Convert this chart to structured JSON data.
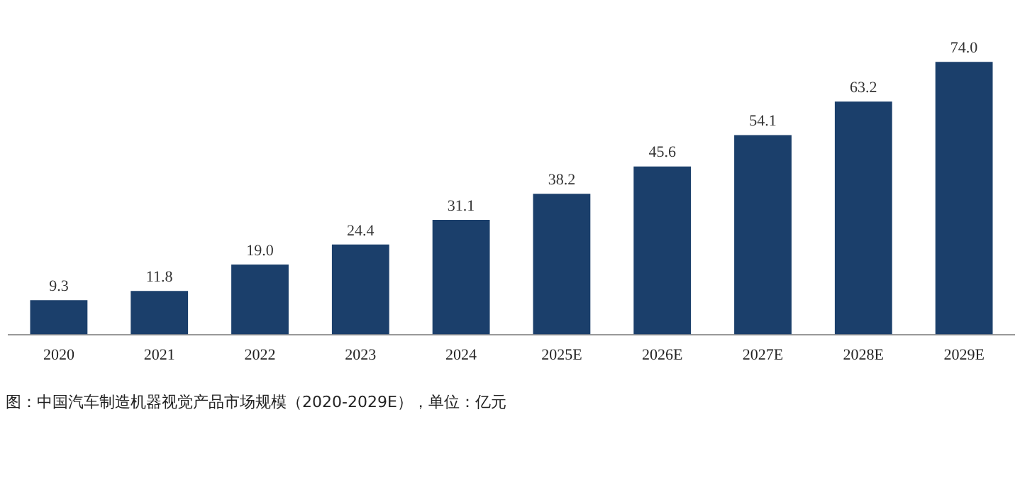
{
  "chart_data": {
    "type": "bar",
    "categories": [
      "2020",
      "2021",
      "2022",
      "2023",
      "2024",
      "2025E",
      "2026E",
      "2027E",
      "2028E",
      "2029E"
    ],
    "values": [
      9.3,
      11.8,
      19.0,
      24.4,
      31.1,
      38.2,
      45.6,
      54.1,
      63.2,
      74.0
    ],
    "color": "#1b3f6b",
    "value_labels": [
      "9.3",
      "11.8",
      "19.0",
      "24.4",
      "31.1",
      "38.2",
      "45.6",
      "54.1",
      "63.2",
      "74.0"
    ],
    "grid": false,
    "annotations": [
      "图：中国汽车制造机器视觉产品市场规模（2020-2029E），单位：亿元"
    ]
  }
}
